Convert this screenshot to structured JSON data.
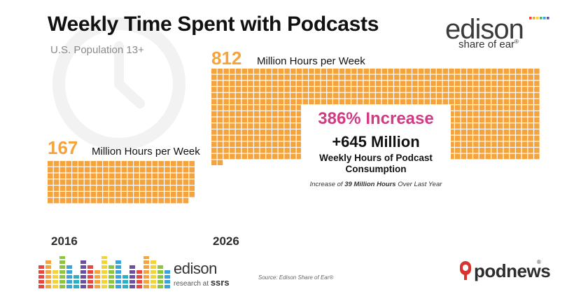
{
  "title": "Weekly Time Spent with Podcasts",
  "subtitle": "U.S. Population 13+",
  "logo_top": {
    "word": "edison",
    "tagline": "share of ear",
    "tagline_mark": "®"
  },
  "colors": {
    "accent_orange": "#f5a33c",
    "highlight_pink": "#d23b83",
    "text_dark": "#111111",
    "logo_dots": [
      "#e8473d",
      "#f5a33c",
      "#f2d33a",
      "#4fb35a",
      "#3aa3d9",
      "#6b4fa0"
    ],
    "bars": [
      "#e8473d",
      "#f5a33c",
      "#f2d33a",
      "#8cc63f",
      "#3aa3d9",
      "#29b0c7",
      "#6b4fa0"
    ]
  },
  "chart_data": {
    "type": "bar",
    "categories": [
      "2016",
      "2026"
    ],
    "values": [
      167,
      812
    ],
    "units": "Million Hours per Week",
    "value_labels": [
      "167",
      "812"
    ],
    "unit_label": "Million Hours per Week",
    "annotation": {
      "increase_pct": "386% Increase",
      "increase_abs": "+645 Million",
      "description": "Weekly Hours of Podcast Consumption",
      "footnote_prefix": "Increase of ",
      "footnote_bold": "39 Million Hours",
      "footnote_suffix": " Over Last Year"
    }
  },
  "bottom": {
    "edison_word": "edison",
    "edison_sub": "research at",
    "edison_ssrs": "ssrs",
    "source": "Source: Edison Share of Ear®",
    "podnews": "podnews",
    "podnews_mark": "®"
  },
  "icons": [
    "clock-icon",
    "microphone-icon"
  ]
}
